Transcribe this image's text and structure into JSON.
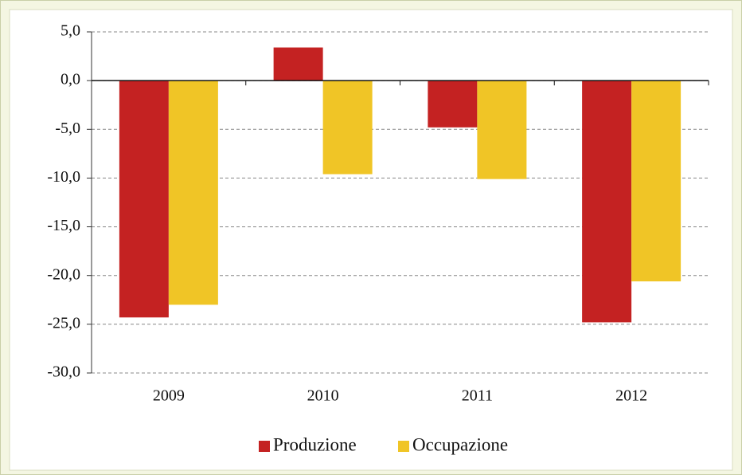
{
  "chart_data": {
    "type": "bar",
    "categories": [
      "2009",
      "2010",
      "2011",
      "2012"
    ],
    "series": [
      {
        "name": "Produzione",
        "color": "#c42222",
        "values": [
          -24.3,
          3.4,
          -4.8,
          -24.8
        ]
      },
      {
        "name": "Occupazione",
        "color": "#f0c526",
        "values": [
          -23.0,
          -9.6,
          -10.1,
          -20.6
        ]
      }
    ],
    "ylim": [
      -30,
      5
    ],
    "yticks": [
      {
        "value": 5,
        "label": "5,0"
      },
      {
        "value": 0,
        "label": "0,0"
      },
      {
        "value": -5,
        "label": "-5,0"
      },
      {
        "value": -10,
        "label": "-10,0"
      },
      {
        "value": -15,
        "label": "-15,0"
      },
      {
        "value": -20,
        "label": "-20,0"
      },
      {
        "value": -25,
        "label": "-25,0"
      },
      {
        "value": -30,
        "label": "-30,0"
      }
    ],
    "grid": true,
    "legend": "bottom"
  }
}
